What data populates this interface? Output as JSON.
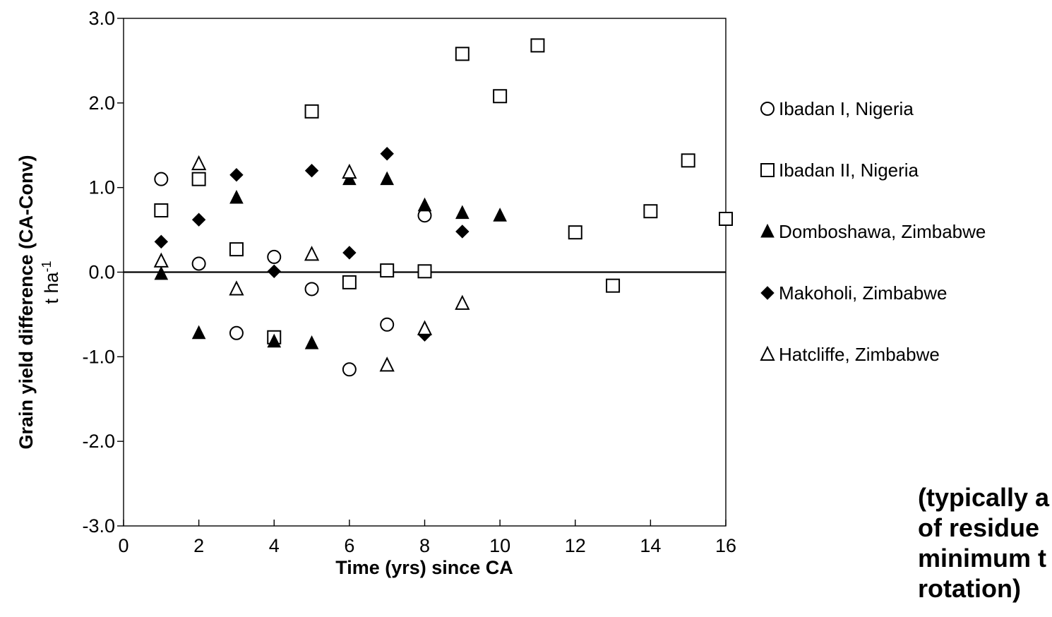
{
  "chart_data": {
    "type": "scatter",
    "xlabel": "Time (yrs) since CA",
    "ylabel_line1": "Grain yield difference (CA-Conv)",
    "ylabel_line2": "t ha",
    "ylabel_superscript": "-1",
    "xlim": [
      0,
      16
    ],
    "ylim": [
      -3.0,
      3.0
    ],
    "x_ticks": [
      "0",
      "2",
      "4",
      "6",
      "8",
      "10",
      "12",
      "14",
      "16"
    ],
    "y_ticks": [
      "3.0",
      "2.0",
      "1.0",
      "0.0",
      "-1.0",
      "-2.0",
      "-3.0"
    ],
    "grid": false,
    "zero_line": true,
    "legend_position": "right",
    "series": [
      {
        "name": "Ibadan I, Nigeria",
        "marker": "circle-open",
        "points": [
          [
            1,
            1.1
          ],
          [
            2,
            0.1
          ],
          [
            3,
            -0.72
          ],
          [
            4,
            0.18
          ],
          [
            5,
            -0.2
          ],
          [
            6,
            -1.15
          ],
          [
            7,
            -0.62
          ],
          [
            8,
            0.67
          ]
        ]
      },
      {
        "name": "Ibadan II, Nigeria",
        "marker": "square-open",
        "points": [
          [
            1,
            0.73
          ],
          [
            2,
            1.1
          ],
          [
            3,
            0.27
          ],
          [
            4,
            -0.77
          ],
          [
            5,
            1.9
          ],
          [
            6,
            -0.12
          ],
          [
            7,
            0.02
          ],
          [
            8,
            0.01
          ],
          [
            9,
            2.58
          ],
          [
            10,
            2.08
          ],
          [
            11,
            2.68
          ],
          [
            12,
            0.47
          ],
          [
            13,
            -0.16
          ],
          [
            14,
            0.72
          ],
          [
            15,
            1.32
          ],
          [
            16,
            0.63
          ]
        ]
      },
      {
        "name": "Domboshawa, Zimbabwe",
        "marker": "triangle-filled",
        "points": [
          [
            1,
            -0.02
          ],
          [
            2,
            -0.72
          ],
          [
            3,
            0.88
          ],
          [
            4,
            -0.82
          ],
          [
            5,
            -0.84
          ],
          [
            6,
            1.1
          ],
          [
            7,
            1.1
          ],
          [
            8,
            0.79
          ],
          [
            9,
            0.7
          ],
          [
            10,
            0.67
          ]
        ]
      },
      {
        "name": "Makoholi, Zimbabwe",
        "marker": "diamond-filled",
        "points": [
          [
            1,
            0.36
          ],
          [
            2,
            0.62
          ],
          [
            3,
            1.15
          ],
          [
            4,
            0.01
          ],
          [
            5,
            1.2
          ],
          [
            6,
            0.23
          ],
          [
            7,
            1.4
          ],
          [
            8,
            -0.74
          ],
          [
            9,
            0.48
          ]
        ]
      },
      {
        "name": "Hatcliffe, Zimbabwe",
        "marker": "triangle-open",
        "points": [
          [
            1,
            0.13
          ],
          [
            2,
            1.28
          ],
          [
            3,
            -0.2
          ],
          [
            5,
            0.21
          ],
          [
            6,
            1.18
          ],
          [
            7,
            -1.1
          ],
          [
            8,
            -0.67
          ],
          [
            9,
            -0.37
          ]
        ]
      }
    ],
    "colors": {
      "marker": "#000000",
      "axis": "#000000",
      "background": "#ffffff"
    }
  },
  "caption": {
    "lines": [
      "(typically a",
      "of residue",
      "minimum t",
      "rotation)"
    ]
  }
}
